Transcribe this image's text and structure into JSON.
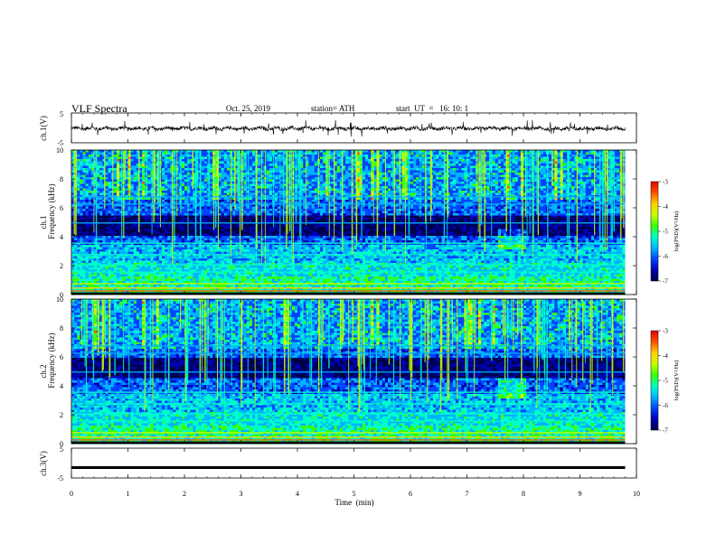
{
  "header": {
    "title": "VLF Spectra",
    "date": "Oct. 25, 2019",
    "station": "station= ATH",
    "start": "start  UT  =   16: 10: 1"
  },
  "chart_data": [
    {
      "type": "line",
      "name": "ch1-waveform",
      "ylabel": "ch.1(V)",
      "ylim": [
        -5,
        5
      ],
      "yticks": [
        "5",
        "-5"
      ],
      "xlim": [
        0,
        10
      ],
      "baseline": -0.2,
      "trace_color": "#000000"
    },
    {
      "type": "heatmap",
      "name": "ch1-spectrogram",
      "ylabel_top": "ch.1",
      "ylabel": "Frequency  (kHz)",
      "ylim": [
        0,
        10
      ],
      "yticks": [
        "0",
        "2",
        "4",
        "6",
        "8",
        "10"
      ],
      "xlim": [
        0,
        9.8
      ],
      "colorbar": {
        "label": "log(PSD)(V²/Hz)",
        "range": [
          -7,
          -3
        ],
        "ticks": [
          "-3",
          "-4",
          "-5",
          "-6",
          "-7"
        ]
      },
      "strong_band_khz": [
        4.0,
        5.5
      ],
      "feature_time_min": 7.8
    },
    {
      "type": "heatmap",
      "name": "ch2-spectrogram",
      "ylabel_top": "ch.2",
      "ylabel": "Frequency  (kHz)",
      "ylim": [
        0,
        10
      ],
      "yticks": [
        "0",
        "2",
        "4",
        "6",
        "8",
        "10"
      ],
      "xlim": [
        0,
        9.8
      ],
      "colorbar": {
        "label": "log(PSD)(V²/Hz)",
        "range": [
          -7,
          -3
        ],
        "ticks": [
          "-3",
          "-4",
          "-5",
          "-6",
          "-7"
        ]
      },
      "strong_band_khz": [
        4.5,
        6.0
      ],
      "feature_time_min": 7.8
    },
    {
      "type": "line",
      "name": "ch3-waveform",
      "ylabel": "ch.3(V)",
      "ylim": [
        -5,
        5
      ],
      "yticks": [
        "5",
        "-5"
      ],
      "xlim": [
        0,
        9.8
      ],
      "baseline": -1.5,
      "trace_color": "#000000",
      "xlabel": "Time  (min)",
      "xticks": [
        "0",
        "1",
        "2",
        "3",
        "4",
        "5",
        "6",
        "7",
        "8",
        "9",
        "10"
      ]
    }
  ],
  "colormap": [
    "#00004a",
    "#0000b4",
    "#0044ff",
    "#00b4ff",
    "#00ffc8",
    "#3cff00",
    "#c8ff00",
    "#ffd000",
    "#ff5000",
    "#e00000",
    "#ffffff"
  ]
}
